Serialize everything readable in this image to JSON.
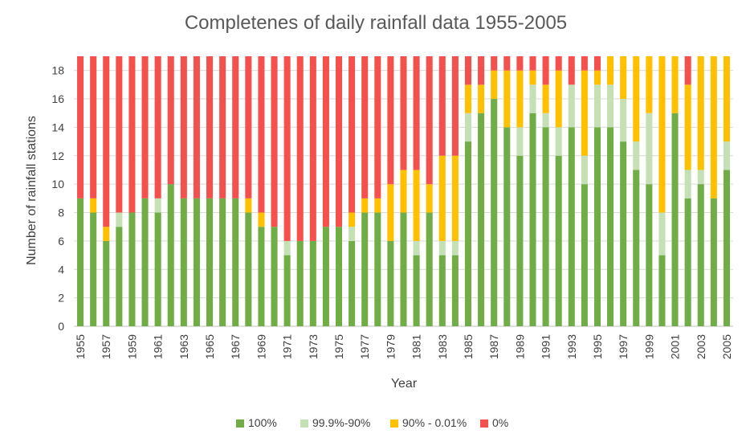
{
  "chart_data": {
    "type": "bar",
    "stacked": true,
    "title": "Completenes of daily rainfall data 1955-2005",
    "xlabel": "Year",
    "ylabel": "Number of rainfall stations",
    "ylim": [
      0,
      19
    ],
    "yticks": [
      0,
      2,
      4,
      6,
      8,
      10,
      12,
      14,
      16,
      18
    ],
    "grid": true,
    "legend_position": "bottom",
    "categories": [
      1955,
      1956,
      1957,
      1958,
      1959,
      1960,
      1961,
      1962,
      1963,
      1964,
      1965,
      1966,
      1967,
      1968,
      1969,
      1970,
      1971,
      1972,
      1973,
      1974,
      1975,
      1976,
      1977,
      1978,
      1979,
      1980,
      1981,
      1982,
      1983,
      1984,
      1985,
      1986,
      1987,
      1988,
      1989,
      1990,
      1991,
      1992,
      1993,
      1994,
      1995,
      1996,
      1997,
      1998,
      1999,
      2000,
      2001,
      2002,
      2003,
      2004,
      2005
    ],
    "x_tick_labels": [
      "1955",
      "1957",
      "1959",
      "1961",
      "1963",
      "1965",
      "1967",
      "1969",
      "1971",
      "1973",
      "1975",
      "1977",
      "1979",
      "1981",
      "1983",
      "1985",
      "1987",
      "1989",
      "1991",
      "1993",
      "1995",
      "1997",
      "1999",
      "2001",
      "2003",
      "2005"
    ],
    "series": [
      {
        "name": "100%",
        "color": "#70ad47",
        "values": [
          9,
          8,
          6,
          7,
          8,
          9,
          8,
          10,
          9,
          9,
          9,
          9,
          9,
          8,
          7,
          7,
          5,
          6,
          6,
          7,
          7,
          6,
          8,
          8,
          6,
          8,
          5,
          8,
          5,
          5,
          13,
          15,
          16,
          14,
          12,
          15,
          14,
          12,
          14,
          10,
          14,
          14,
          13,
          11,
          10,
          5,
          15,
          9,
          10,
          9,
          11
        ]
      },
      {
        "name": "99.9%-90%",
        "color": "#c5e0b4",
        "values": [
          0,
          0,
          0,
          1,
          0,
          0,
          1,
          0,
          0,
          0,
          0,
          0,
          0,
          0,
          0,
          0,
          1,
          0,
          0,
          0,
          0,
          1,
          0,
          0,
          0,
          0,
          1,
          0,
          1,
          1,
          2,
          0,
          0,
          0,
          2,
          2,
          1,
          2,
          3,
          2,
          3,
          3,
          3,
          2,
          5,
          3,
          0,
          2,
          1,
          0,
          2
        ]
      },
      {
        "name": "90% - 0.01%",
        "color": "#ffc000",
        "values": [
          0,
          1,
          1,
          0,
          0,
          0,
          0,
          0,
          0,
          0,
          0,
          0,
          0,
          1,
          1,
          0,
          0,
          0,
          0,
          0,
          0,
          1,
          1,
          1,
          4,
          3,
          5,
          2,
          6,
          6,
          2,
          2,
          2,
          4,
          4,
          1,
          2,
          4,
          0,
          6,
          1,
          2,
          3,
          6,
          4,
          11,
          4,
          6,
          8,
          10,
          6
        ]
      },
      {
        "name": "0%",
        "color": "#f4504e",
        "values": [
          10,
          10,
          12,
          11,
          11,
          10,
          10,
          9,
          10,
          10,
          10,
          10,
          10,
          10,
          11,
          12,
          13,
          13,
          13,
          12,
          12,
          11,
          10,
          10,
          9,
          8,
          8,
          9,
          7,
          7,
          2,
          2,
          1,
          1,
          1,
          1,
          2,
          1,
          2,
          1,
          1,
          0,
          0,
          0,
          0,
          0,
          0,
          2,
          0,
          0,
          0
        ]
      }
    ]
  }
}
